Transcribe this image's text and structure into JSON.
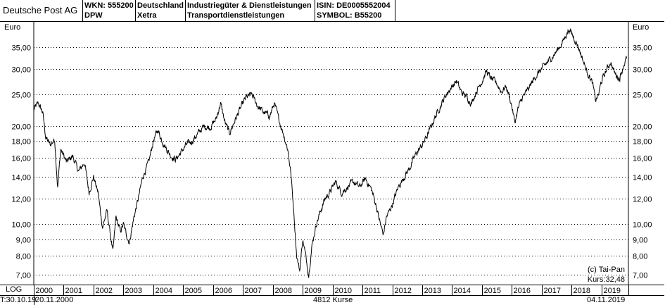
{
  "header": {
    "name": "Deutsche Post AG",
    "wkn": "WKN: 555200",
    "ticker": "DPW",
    "country": "Deutschland",
    "exchange": "Xetra",
    "sector": "Industriegüter & Dienstleistungen",
    "industry": "Transportdienstleistungen",
    "isin": "ISIN: DE0005552004",
    "symbol": "SYMBOL: B55200"
  },
  "footer": {
    "scale_mode": "LOG",
    "range_start_cut": "T:30.10.19",
    "start_date": "20.11.2000",
    "count_label": "4812 Kurse",
    "end_date": "04.11.2019"
  },
  "chart_data": {
    "type": "line",
    "unit_label": "Euro",
    "y_scale": "log",
    "ylim": [
      6.5,
      42
    ],
    "y_ticks": [
      7,
      8,
      9,
      10,
      12,
      14,
      16,
      18,
      20,
      25,
      30,
      35
    ],
    "y_tick_labels": [
      "7,00",
      "8,00",
      "9,00",
      "10,00",
      "12,00",
      "14,00",
      "16,00",
      "18,00",
      "20,00",
      "25,00",
      "30,00",
      "35,00"
    ],
    "x_range": [
      2000.0,
      2019.9
    ],
    "x_ticks": [
      2000,
      2001,
      2002,
      2003,
      2004,
      2005,
      2006,
      2007,
      2008,
      2009,
      2010,
      2011,
      2012,
      2013,
      2014,
      2015,
      2016,
      2017,
      2018,
      2019
    ],
    "x_tick_labels": [
      "2000",
      "2001",
      "2002",
      "2003",
      "2004",
      "2005",
      "2006",
      "2007",
      "2008",
      "2009",
      "2010",
      "2011",
      "2012",
      "2013",
      "2014",
      "2015",
      "2016",
      "2017",
      "2018",
      "2019"
    ],
    "grid": "dotted",
    "copyright": "(c) Tai-Pan",
    "last_price": "Kurs:32,48",
    "series": [
      {
        "points": [
          [
            2000.0,
            22.5
          ],
          [
            2000.15,
            23.5
          ],
          [
            2000.3,
            22.0
          ],
          [
            2000.4,
            18.5
          ],
          [
            2000.55,
            17.5
          ],
          [
            2000.7,
            18.2
          ],
          [
            2000.8,
            13.0
          ],
          [
            2000.9,
            17.0
          ],
          [
            2001.1,
            15.5
          ],
          [
            2001.3,
            16.2
          ],
          [
            2001.5,
            14.5
          ],
          [
            2001.7,
            15.5
          ],
          [
            2001.85,
            12.5
          ],
          [
            2002.0,
            14.0
          ],
          [
            2002.15,
            12.5
          ],
          [
            2002.3,
            9.8
          ],
          [
            2002.45,
            11.0
          ],
          [
            2002.55,
            9.5
          ],
          [
            2002.65,
            8.2
          ],
          [
            2002.75,
            10.5
          ],
          [
            2002.9,
            9.5
          ],
          [
            2003.0,
            10.0
          ],
          [
            2003.1,
            9.3
          ],
          [
            2003.2,
            8.8
          ],
          [
            2003.35,
            10.5
          ],
          [
            2003.5,
            12.0
          ],
          [
            2003.65,
            14.0
          ],
          [
            2003.85,
            15.5
          ],
          [
            2004.0,
            18.0
          ],
          [
            2004.15,
            19.5
          ],
          [
            2004.3,
            18.0
          ],
          [
            2004.45,
            17.0
          ],
          [
            2004.6,
            16.2
          ],
          [
            2004.75,
            15.8
          ],
          [
            2004.9,
            16.5
          ],
          [
            2005.1,
            17.5
          ],
          [
            2005.3,
            18.0
          ],
          [
            2005.5,
            19.0
          ],
          [
            2005.7,
            20.0
          ],
          [
            2005.9,
            19.8
          ],
          [
            2006.1,
            21.0
          ],
          [
            2006.25,
            23.5
          ],
          [
            2006.4,
            20.5
          ],
          [
            2006.55,
            19.0
          ],
          [
            2006.75,
            21.0
          ],
          [
            2006.9,
            22.5
          ],
          [
            2007.1,
            24.5
          ],
          [
            2007.3,
            25.0
          ],
          [
            2007.5,
            23.0
          ],
          [
            2007.7,
            22.0
          ],
          [
            2007.9,
            21.5
          ],
          [
            2008.05,
            23.5
          ],
          [
            2008.2,
            21.0
          ],
          [
            2008.35,
            19.0
          ],
          [
            2008.5,
            17.0
          ],
          [
            2008.6,
            14.5
          ],
          [
            2008.7,
            11.0
          ],
          [
            2008.8,
            8.0
          ],
          [
            2008.9,
            7.2
          ],
          [
            2009.0,
            9.0
          ],
          [
            2009.1,
            8.0
          ],
          [
            2009.2,
            7.0
          ],
          [
            2009.3,
            8.5
          ],
          [
            2009.45,
            10.0
          ],
          [
            2009.6,
            11.0
          ],
          [
            2009.75,
            12.0
          ],
          [
            2009.9,
            12.5
          ],
          [
            2010.1,
            13.5
          ],
          [
            2010.3,
            12.5
          ],
          [
            2010.5,
            13.0
          ],
          [
            2010.7,
            13.5
          ],
          [
            2010.9,
            13.0
          ],
          [
            2011.1,
            13.8
          ],
          [
            2011.3,
            12.8
          ],
          [
            2011.45,
            11.5
          ],
          [
            2011.6,
            10.0
          ],
          [
            2011.7,
            9.3
          ],
          [
            2011.8,
            10.5
          ],
          [
            2012.0,
            11.5
          ],
          [
            2012.2,
            13.0
          ],
          [
            2012.4,
            14.0
          ],
          [
            2012.6,
            15.0
          ],
          [
            2012.8,
            16.5
          ],
          [
            2013.0,
            17.5
          ],
          [
            2013.2,
            19.0
          ],
          [
            2013.4,
            21.0
          ],
          [
            2013.6,
            23.0
          ],
          [
            2013.8,
            25.0
          ],
          [
            2014.0,
            26.5
          ],
          [
            2014.15,
            27.5
          ],
          [
            2014.3,
            25.5
          ],
          [
            2014.5,
            24.5
          ],
          [
            2014.65,
            23.5
          ],
          [
            2014.8,
            25.5
          ],
          [
            2015.0,
            27.5
          ],
          [
            2015.15,
            29.5
          ],
          [
            2015.3,
            28.0
          ],
          [
            2015.5,
            27.0
          ],
          [
            2015.65,
            25.5
          ],
          [
            2015.8,
            26.5
          ],
          [
            2015.9,
            25.0
          ],
          [
            2016.0,
            23.0
          ],
          [
            2016.1,
            20.5
          ],
          [
            2016.2,
            22.5
          ],
          [
            2016.35,
            24.5
          ],
          [
            2016.5,
            25.5
          ],
          [
            2016.65,
            27.0
          ],
          [
            2016.8,
            28.5
          ],
          [
            2017.0,
            30.0
          ],
          [
            2017.2,
            31.5
          ],
          [
            2017.4,
            33.0
          ],
          [
            2017.6,
            35.0
          ],
          [
            2017.75,
            37.0
          ],
          [
            2017.9,
            39.5
          ],
          [
            2018.0,
            38.5
          ],
          [
            2018.1,
            37.0
          ],
          [
            2018.2,
            35.5
          ],
          [
            2018.3,
            33.5
          ],
          [
            2018.4,
            31.5
          ],
          [
            2018.5,
            29.5
          ],
          [
            2018.6,
            28.5
          ],
          [
            2018.7,
            27.0
          ],
          [
            2018.8,
            24.0
          ],
          [
            2018.9,
            25.0
          ],
          [
            2019.0,
            27.5
          ],
          [
            2019.15,
            29.5
          ],
          [
            2019.3,
            31.5
          ],
          [
            2019.45,
            29.0
          ],
          [
            2019.6,
            28.0
          ],
          [
            2019.75,
            31.0
          ],
          [
            2019.85,
            32.48
          ]
        ]
      }
    ]
  }
}
